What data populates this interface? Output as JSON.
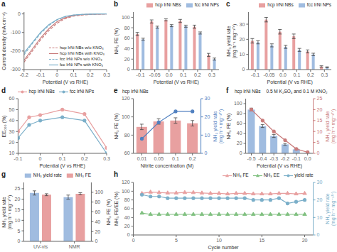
{
  "chart_data": [
    {
      "type": "line",
      "title": "a",
      "xlabel": "Potential (V vs RHE)",
      "ylabel": "Current density (mA cm⁻²)",
      "x": [
        -0.2,
        -0.15,
        -0.1,
        -0.05,
        0.0,
        0.05,
        0.1,
        0.15,
        0.2,
        0.25,
        0.3
      ],
      "xlim": [
        -0.2,
        0.3
      ],
      "xticks": [
        -0.2,
        -0.1,
        0,
        0.1,
        0.2,
        0.3
      ],
      "ylim": [
        -300,
        10
      ],
      "yticks": [
        -300,
        -200,
        -100,
        0
      ],
      "grid": false,
      "legend": "lower right",
      "series": [
        {
          "name": "hcp IrNi NBs w/o KNO₃",
          "color": "#c97b7b",
          "line_style": "dashed",
          "values": [
            -260,
            -200,
            -140,
            -90,
            -50,
            -25,
            -12,
            -6,
            -3,
            -1,
            0
          ]
        },
        {
          "name": "hcp IrNi NBs with KNO₃",
          "color": "#c97b7b",
          "line_style": "solid",
          "values": [
            -250,
            -190,
            -130,
            -80,
            -42,
            -20,
            -9,
            -4,
            -2,
            -1,
            0
          ]
        },
        {
          "name": "fcc IrNi NPs w/o KNO₃",
          "color": "#7bafc9",
          "line_style": "dashed",
          "values": [
            -220,
            -160,
            -105,
            -62,
            -32,
            -15,
            -7,
            -3,
            -1.5,
            -0.5,
            0
          ]
        },
        {
          "name": "fcc IrNi NPs with KNO₃",
          "color": "#7bafc9",
          "line_style": "solid",
          "values": [
            -210,
            -155,
            -100,
            -58,
            -30,
            -13,
            -6,
            -2.5,
            -1,
            -0.3,
            0
          ]
        }
      ]
    },
    {
      "type": "bar",
      "title": "b",
      "xlabel": "Potential (V vs RHE)",
      "ylabel": "NH₃ FE (%)",
      "categories": [
        "-0.1",
        "-0.05",
        "0.0",
        "0.1",
        "0.2",
        "0.3"
      ],
      "ylim": [
        0,
        110
      ],
      "yticks": [
        0,
        20,
        40,
        60,
        80,
        100
      ],
      "grid": false,
      "legend": "upper right",
      "series": [
        {
          "name": "hcp IrNi NBs",
          "color": "#e8a0a0",
          "values": [
            68,
            92,
            95,
            93,
            82,
            28
          ],
          "errors": [
            3,
            3,
            2,
            3,
            3,
            3
          ]
        },
        {
          "name": "fcc IrNi NPs",
          "color": "#a0bce0",
          "values": [
            58,
            81,
            84,
            83,
            70,
            20
          ],
          "errors": [
            2,
            2,
            2,
            2,
            2,
            2
          ]
        }
      ]
    },
    {
      "type": "bar",
      "title": "c",
      "xlabel": "Potential (V vs RHE)",
      "ylabel": "NH₃ yield rate\n(mg h⁻¹ mg⁻¹ᵀʳ)",
      "categories": [
        "-0.1",
        "-0.05",
        "0.0",
        "0.1",
        "0.2",
        "0.3"
      ],
      "ylim": [
        0,
        38
      ],
      "yticks": [
        0,
        10,
        20,
        30
      ],
      "grid": false,
      "legend": "upper right",
      "series": [
        {
          "name": "hcp IrNi NBs",
          "color": "#e8a0a0",
          "values": [
            19,
            33,
            25,
            22,
            12,
            2
          ],
          "errors": [
            1.5,
            1.5,
            1.5,
            1.5,
            1,
            0.5
          ]
        },
        {
          "name": "fcc IrNi NPs",
          "color": "#a0bce0",
          "values": [
            18,
            16,
            15,
            13,
            10,
            1.5
          ],
          "errors": [
            1,
            1,
            1,
            1,
            0.8,
            0.3
          ]
        }
      ]
    },
    {
      "type": "line",
      "title": "d",
      "xlabel": "Potential (V vs RHE)",
      "ylabel": "EE₀₀₀ (%)",
      "x": [
        -0.1,
        -0.05,
        0.0,
        0.1,
        0.2,
        0.3
      ],
      "xlim": [
        -0.1,
        0.3
      ],
      "xticks": [
        -0.1,
        0,
        0.1,
        0.2,
        0.3
      ],
      "ylim": [
        10,
        60
      ],
      "yticks": [
        10,
        20,
        30,
        40,
        50,
        60
      ],
      "grid": false,
      "legend": "upper left",
      "series": [
        {
          "name": "hcp IrNi NBs",
          "color": "#e8a0a0",
          "marker": "circle",
          "values": [
            30,
            43,
            45,
            50,
            46,
            15
          ]
        },
        {
          "name": "fcc IrNi NPs",
          "color": "#7bafc9",
          "marker": "circle",
          "values": [
            24,
            36,
            40,
            43,
            40,
            10
          ]
        }
      ]
    },
    {
      "type": "combo",
      "title": "e",
      "subtitle": "hcp IrNi NBs",
      "xlabel": "Nitrite concentration (M)",
      "ylabel": "NH₃ FE (%)",
      "y2label": "NH₃ yield rate\n(mg h⁻¹ mg⁻¹ᵀʳ)",
      "categories": [
        "0.01",
        "0.05",
        "0.1",
        "0.2"
      ],
      "ylim": [
        60,
        120
      ],
      "yticks": [
        60,
        80,
        100,
        120
      ],
      "y2lim": [
        0,
        30
      ],
      "y2ticks": [
        0,
        10,
        20,
        30
      ],
      "grid": false,
      "series": [
        {
          "type": "bar",
          "color": "#e8a0a0",
          "values": [
            89,
            95,
            96,
            93
          ],
          "errors": [
            3,
            3,
            3,
            3
          ]
        },
        {
          "type": "line",
          "axis": "y2",
          "color": "#5080c0",
          "marker": "circle",
          "values": [
            8,
            17,
            23,
            23
          ]
        }
      ]
    },
    {
      "type": "combo",
      "title": "f",
      "subtitle": "hcp IrNi NBs",
      "annotations": [
        "0.5 M K₂SO₄ and 0.1 M KNO₂"
      ],
      "xlabel": "Potential (V vs RHE)",
      "ylabel": "NH₃ FE (%)",
      "y2label": "NH₃ yield rate\n(mg h⁻¹ mg⁻¹ᵀʳ)",
      "categories": [
        "-0.5",
        "-0.4",
        "-0.3",
        "-0.2",
        "-0.1",
        "0.0"
      ],
      "ylim": [
        0,
        110
      ],
      "yticks": [
        0,
        20,
        40,
        60,
        80,
        100
      ],
      "y2lim": [
        0,
        25
      ],
      "y2ticks": [
        0,
        5,
        10,
        15,
        20,
        25
      ],
      "grid": false,
      "series": [
        {
          "type": "bar",
          "color": "#a0bce0",
          "values": [
            88,
            55,
            35,
            18,
            8,
            1
          ],
          "errors": [
            3,
            3,
            3,
            2,
            1,
            0.5
          ]
        },
        {
          "type": "line",
          "axis": "y2",
          "color": "#c97b7b",
          "marker": "circle",
          "values": [
            20,
            15,
            10,
            6,
            2,
            0.5
          ]
        }
      ]
    },
    {
      "type": "bar",
      "title": "g",
      "ylabel": "NH₃ yield rate\n(mg h⁻¹ mg⁻¹ᵀʳ)",
      "y2label": "NH₃ FE (%)",
      "categories": [
        "UV-vis",
        "NMR"
      ],
      "ylim": [
        0,
        28
      ],
      "yticks": [
        0,
        5,
        10,
        15,
        20,
        25
      ],
      "y2lim": [
        0,
        120
      ],
      "y2ticks": [
        0,
        20,
        40,
        60,
        80,
        100
      ],
      "grid": false,
      "legend": "upper center",
      "series": [
        {
          "name": "NH₃ yield rate",
          "color": "#a0bce0",
          "values": [
            23,
            21
          ],
          "errors": [
            1,
            1
          ]
        },
        {
          "name": "NH₃ FE",
          "axis": "y2",
          "color": "#e8a0a0",
          "values": [
            95,
            97
          ],
          "errors": [
            2,
            2
          ]
        }
      ]
    },
    {
      "type": "line",
      "title": "h",
      "xlabel": "Cycle number",
      "ylabel": "NH₃ FE/EE (%)",
      "y2label": "NH₃ yield rate\n(mg h⁻¹ mg⁻¹ᵀʳ)",
      "x": [
        1,
        2,
        3,
        4,
        5,
        6,
        7,
        8,
        9,
        10,
        11,
        12,
        13,
        14,
        15,
        16,
        17,
        18,
        19,
        20
      ],
      "xlim": [
        0,
        21
      ],
      "xticks": [
        0,
        5,
        10,
        15,
        20
      ],
      "ylim": [
        0,
        120
      ],
      "yticks": [
        0,
        20,
        40,
        60,
        80,
        100,
        120
      ],
      "y2lim": [
        0,
        30
      ],
      "y2ticks": [
        0,
        10,
        20,
        30
      ],
      "grid": false,
      "legend": "upper right",
      "series": [
        {
          "name": "NH₃ FE",
          "color": "#e8a0a0",
          "marker": "triangle",
          "values": [
            95,
            98,
            97,
            96,
            96,
            97,
            97,
            96,
            95,
            95,
            94,
            95,
            95,
            94,
            94,
            94,
            95,
            95,
            94,
            95
          ]
        },
        {
          "name": "NH₃ EE",
          "color": "#80c080",
          "marker": "triangle",
          "values": [
            50,
            47,
            47,
            47,
            47,
            47,
            47,
            47,
            47,
            47,
            47,
            47,
            47,
            47,
            47,
            47,
            47,
            47,
            47,
            47
          ]
        },
        {
          "name": "yield rate",
          "axis": "y2",
          "color": "#7bafc9",
          "marker": "circle",
          "values": [
            23,
            22,
            22,
            21,
            21,
            21,
            21,
            21,
            21,
            21,
            21,
            21,
            21,
            20,
            20,
            20,
            21,
            18,
            19,
            20
          ]
        }
      ]
    }
  ]
}
